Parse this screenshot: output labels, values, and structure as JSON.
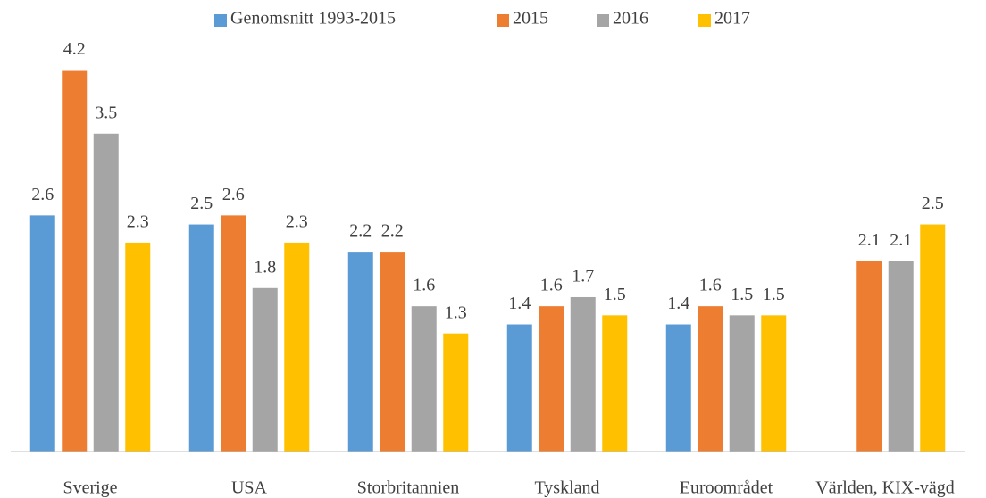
{
  "chart_data": {
    "type": "bar",
    "categories": [
      "Sverige",
      "USA",
      "Storbritannien",
      "Tyskland",
      "Euroområdet",
      "Världen, KIX-vägd"
    ],
    "series": [
      {
        "name": "Genomsnitt 1993-2015",
        "color": "#5b9bd5",
        "values": [
          2.6,
          2.5,
          2.2,
          1.4,
          1.4,
          null
        ]
      },
      {
        "name": "2015",
        "color": "#ed7d31",
        "values": [
          4.2,
          2.6,
          2.2,
          1.6,
          1.6,
          2.1
        ]
      },
      {
        "name": "2016",
        "color": "#a5a5a5",
        "values": [
          3.5,
          1.8,
          1.6,
          1.7,
          1.5,
          2.1
        ]
      },
      {
        "name": "2017",
        "color": "#ffc000",
        "values": [
          2.3,
          2.3,
          1.3,
          1.5,
          1.5,
          2.5
        ]
      }
    ],
    "ylim": [
      0,
      4.5
    ],
    "grid": false,
    "legend": "top"
  }
}
